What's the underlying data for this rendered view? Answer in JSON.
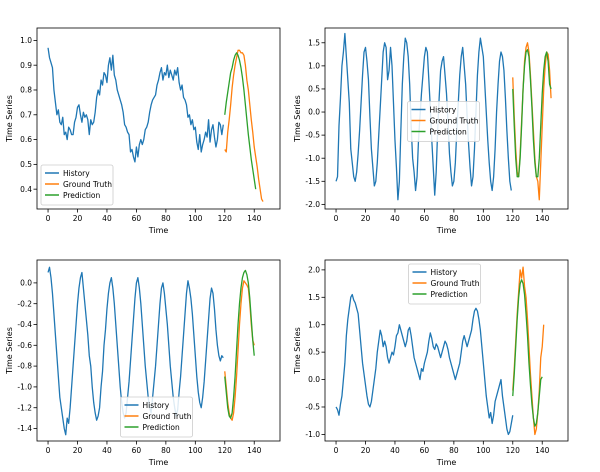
{
  "chart_data": [
    {
      "type": "line",
      "xlabel": "Time",
      "ylabel": "Time Series",
      "xlim": [
        -7.5,
        157.5
      ],
      "ylim": [
        0.32,
        1.05
      ],
      "xticks": [
        0,
        20,
        40,
        60,
        80,
        100,
        120,
        140
      ],
      "yticks": [
        0.4,
        0.5,
        0.6,
        0.7,
        0.8,
        0.9,
        1.0
      ],
      "ytick_labels": [
        "0.4",
        "0.5",
        "0.6",
        "0.7",
        "0.8",
        "0.9",
        "1.0"
      ],
      "legend_position": "lower-left",
      "legend": [
        "History",
        "Ground Truth",
        "Prediction"
      ],
      "series": [
        {
          "name": "History",
          "color": "#1f77b4",
          "x_start": 0,
          "values": [
            0.97,
            0.93,
            0.91,
            0.89,
            0.8,
            0.75,
            0.7,
            0.72,
            0.67,
            0.66,
            0.69,
            0.62,
            0.63,
            0.6,
            0.65,
            0.64,
            0.62,
            0.62,
            0.67,
            0.69,
            0.73,
            0.74,
            0.7,
            0.67,
            0.71,
            0.69,
            0.7,
            0.68,
            0.62,
            0.68,
            0.66,
            0.67,
            0.71,
            0.77,
            0.8,
            0.78,
            0.84,
            0.82,
            0.87,
            0.86,
            0.83,
            0.9,
            0.93,
            0.88,
            0.94,
            0.86,
            0.84,
            0.8,
            0.78,
            0.76,
            0.74,
            0.71,
            0.66,
            0.65,
            0.63,
            0.62,
            0.55,
            0.56,
            0.53,
            0.51,
            0.57,
            0.53,
            0.58,
            0.6,
            0.58,
            0.6,
            0.64,
            0.65,
            0.67,
            0.71,
            0.74,
            0.76,
            0.77,
            0.78,
            0.82,
            0.84,
            0.87,
            0.89,
            0.84,
            0.87,
            0.86,
            0.9,
            0.85,
            0.88,
            0.86,
            0.84,
            0.88,
            0.86,
            0.89,
            0.83,
            0.8,
            0.82,
            0.77,
            0.76,
            0.74,
            0.69,
            0.7,
            0.66,
            0.68,
            0.64,
            0.65,
            0.59,
            0.56,
            0.62,
            0.55,
            0.58,
            0.6,
            0.63,
            0.61,
            0.68,
            0.59,
            0.64,
            0.66,
            0.61,
            0.57,
            0.6,
            0.67,
            0.66,
            0.62,
            0.66
          ]
        },
        {
          "name": "Ground Truth",
          "color": "#ff7f0e",
          "x_start": 120,
          "values": [
            0.56,
            0.55,
            0.63,
            0.68,
            0.74,
            0.81,
            0.86,
            0.9,
            0.93,
            0.96,
            0.96,
            0.95,
            0.95,
            0.94,
            0.9,
            0.84,
            0.8,
            0.74,
            0.68,
            0.63,
            0.57,
            0.53,
            0.49,
            0.44,
            0.4,
            0.36,
            0.35
          ]
        },
        {
          "name": "Prediction",
          "color": "#2ca02c",
          "x_start": 120,
          "values": [
            0.7,
            0.75,
            0.79,
            0.83,
            0.87,
            0.89,
            0.92,
            0.94,
            0.95,
            0.94,
            0.92,
            0.89,
            0.85,
            0.8,
            0.74,
            0.68,
            0.62,
            0.57,
            0.52,
            0.48,
            0.44,
            0.4
          ]
        }
      ]
    },
    {
      "type": "line",
      "xlabel": "Time",
      "ylabel": "Time Series",
      "xlim": [
        -7.5,
        157.5
      ],
      "ylim": [
        -2.1,
        1.82
      ],
      "xticks": [
        0,
        20,
        40,
        60,
        80,
        100,
        120,
        140
      ],
      "yticks": [
        -2.0,
        -1.5,
        -1.0,
        -0.5,
        0.0,
        0.5,
        1.0,
        1.5
      ],
      "ytick_labels": [
        "-2.0",
        "-1.5",
        "-1.0",
        "-0.5",
        "0.0",
        "0.5",
        "1.0",
        "1.5"
      ],
      "legend_position": "center",
      "legend": [
        "History",
        "Ground Truth",
        "Prediction"
      ],
      "series": [
        {
          "name": "History",
          "color": "#1f77b4",
          "x_start": 0,
          "values": [
            -1.5,
            -1.4,
            -0.3,
            0.3,
            1.0,
            1.3,
            1.7,
            1.2,
            0.7,
            0.2,
            -0.8,
            -1.1,
            -1.4,
            -1.5,
            -1.3,
            -0.9,
            -0.4,
            0.2,
            0.8,
            1.3,
            1.4,
            1.1,
            0.7,
            -0.1,
            -0.8,
            -1.2,
            -1.6,
            -1.5,
            -1.1,
            -0.5,
            0.1,
            0.7,
            1.3,
            1.5,
            1.4,
            0.7,
            0.9,
            1.4,
            1.0,
            0.2,
            -0.6,
            -1.2,
            -1.9,
            -1.5,
            -0.4,
            0.6,
            1.2,
            1.6,
            1.5,
            1.2,
            0.6,
            -0.3,
            -1.0,
            -1.3,
            -1.7,
            -1.4,
            -0.6,
            -0.1,
            0.4,
            0.8,
            1.2,
            1.4,
            1.3,
            0.7,
            0.1,
            -0.6,
            -1.2,
            -1.8,
            -1.3,
            -0.4,
            0.3,
            0.9,
            1.1,
            1.2,
            0.8,
            0.4,
            -0.2,
            -0.9,
            -1.3,
            -1.6,
            -1.5,
            -1.1,
            -0.4,
            0.2,
            0.8,
            1.2,
            1.4,
            1.0,
            0.6,
            -0.1,
            -0.7,
            -1.2,
            -1.6,
            -1.4,
            -0.8,
            0.0,
            0.8,
            1.3,
            1.6,
            1.4,
            1.2,
            0.6,
            0.0,
            -0.6,
            -1.1,
            -1.5,
            -1.7,
            -1.4,
            -0.8,
            0.0,
            0.6,
            1.1,
            1.3,
            1.2,
            0.9,
            0.3,
            -0.4,
            -1.0,
            -1.5,
            -1.7
          ]
        },
        {
          "name": "Ground Truth",
          "color": "#ff7f0e",
          "x_start": 120,
          "values": [
            0.75,
            -0.1,
            -0.8,
            -1.3,
            -1.4,
            -0.9,
            -0.2,
            0.5,
            1.1,
            1.4,
            1.5,
            1.3,
            0.8,
            0.2,
            -0.4,
            -1.0,
            -1.4,
            -1.5,
            -1.9,
            -1.1,
            -0.3,
            0.5,
            1.0,
            1.3,
            1.25,
            0.9,
            0.3
          ]
        },
        {
          "name": "Prediction",
          "color": "#2ca02c",
          "x_start": 120,
          "values": [
            0.5,
            -0.3,
            -1.0,
            -1.4,
            -1.4,
            -1.0,
            -0.3,
            0.5,
            1.0,
            1.3,
            1.35,
            1.2,
            0.7,
            0.1,
            -0.6,
            -1.1,
            -1.4,
            -1.4,
            -1.0,
            -0.3,
            0.4,
            0.9,
            1.2,
            1.3,
            1.1,
            0.6,
            0.5
          ]
        }
      ]
    },
    {
      "type": "line",
      "xlabel": "Time",
      "ylabel": "Time Series",
      "xlim": [
        -7.5,
        157.5
      ],
      "ylim": [
        -1.52,
        0.22
      ],
      "xticks": [
        0,
        20,
        40,
        60,
        80,
        100,
        120,
        140
      ],
      "yticks": [
        -1.4,
        -1.2,
        -1.0,
        -0.8,
        -0.6,
        -0.4,
        -0.2,
        0.0
      ],
      "ytick_labels": [
        "-1.4",
        "-1.2",
        "-1.0",
        "-0.8",
        "-0.6",
        "-0.4",
        "-0.2",
        "0.0"
      ],
      "legend_position": "lower-center",
      "legend": [
        "History",
        "Ground Truth",
        "Prediction"
      ],
      "series": [
        {
          "name": "History",
          "color": "#1f77b4",
          "x_start": 0,
          "values": [
            0.1,
            0.15,
            0.05,
            -0.1,
            -0.3,
            -0.5,
            -0.7,
            -0.9,
            -1.1,
            -1.2,
            -1.3,
            -1.4,
            -1.46,
            -1.3,
            -1.35,
            -1.2,
            -1.0,
            -0.8,
            -0.6,
            -0.4,
            -0.2,
            -0.05,
            0.05,
            0.1,
            -0.05,
            -0.2,
            -0.35,
            -0.5,
            -0.7,
            -0.8,
            -1.0,
            -1.15,
            -1.25,
            -1.32,
            -1.28,
            -1.2,
            -1.0,
            -0.85,
            -0.6,
            -0.45,
            -0.25,
            -0.1,
            0.0,
            0.05,
            -0.05,
            -0.2,
            -0.4,
            -0.6,
            -0.8,
            -1.0,
            -1.15,
            -1.25,
            -1.3,
            -1.25,
            -1.1,
            -0.95,
            -0.75,
            -0.55,
            -0.35,
            -0.15,
            0.0,
            0.05,
            -0.05,
            -0.2,
            -0.4,
            -0.6,
            -0.8,
            -0.95,
            -1.1,
            -1.2,
            -1.25,
            -1.1,
            -0.95,
            -0.8,
            -0.6,
            -0.4,
            -0.2,
            -0.05,
            0.0,
            -0.1,
            -0.25,
            -0.4,
            -0.6,
            -0.8,
            -0.95,
            -1.1,
            -1.2,
            -1.28,
            -1.22,
            -1.05,
            -0.9,
            -0.7,
            -0.5,
            -0.3,
            -0.1,
            0.02,
            -0.05,
            -0.15,
            -0.3,
            -0.5,
            -0.7,
            -0.9,
            -1.05,
            -1.15,
            -1.2,
            -1.1,
            -0.95,
            -0.75,
            -0.55,
            -0.35,
            -0.15,
            -0.05,
            -0.1,
            -0.25,
            -0.45,
            -0.6,
            -0.7,
            -0.75,
            -0.7,
            -0.72
          ]
        },
        {
          "name": "Ground Truth",
          "color": "#ff7f0e",
          "x_start": 120,
          "values": [
            -0.85,
            -1.0,
            -1.15,
            -1.25,
            -1.3,
            -1.32,
            -1.25,
            -1.1,
            -0.9,
            -0.65,
            -0.4,
            -0.2,
            -0.05,
            0.02,
            0.0,
            -0.02,
            -0.05,
            -0.2,
            -0.4,
            -0.55,
            -0.6
          ]
        },
        {
          "name": "Prediction",
          "color": "#2ca02c",
          "x_start": 120,
          "values": [
            -0.9,
            -1.05,
            -1.2,
            -1.28,
            -1.3,
            -1.25,
            -1.1,
            -0.9,
            -0.65,
            -0.4,
            -0.2,
            -0.05,
            0.05,
            0.1,
            0.12,
            0.08,
            0.0,
            -0.15,
            -0.35,
            -0.55,
            -0.7
          ]
        }
      ]
    },
    {
      "type": "line",
      "xlabel": "Time",
      "ylabel": "Time Series",
      "xlim": [
        -7.5,
        157.5
      ],
      "ylim": [
        -1.12,
        2.18
      ],
      "xticks": [
        0,
        20,
        40,
        60,
        80,
        100,
        120,
        140
      ],
      "yticks": [
        -1.0,
        -0.5,
        0.0,
        0.5,
        1.0,
        1.5,
        2.0
      ],
      "ytick_labels": [
        "-1.0",
        "-0.5",
        "0.0",
        "0.5",
        "1.0",
        "1.5",
        "2.0"
      ],
      "legend_position": "top-center",
      "legend": [
        "History",
        "Ground Truth",
        "Prediction"
      ],
      "series": [
        {
          "name": "History",
          "color": "#1f77b4",
          "x_start": 0,
          "values": [
            -0.5,
            -0.55,
            -0.65,
            -0.45,
            -0.3,
            0.0,
            0.3,
            0.8,
            1.1,
            1.3,
            1.5,
            1.55,
            1.45,
            1.4,
            1.3,
            1.2,
            0.9,
            0.6,
            0.3,
            0.1,
            -0.1,
            -0.3,
            -0.45,
            -0.5,
            -0.4,
            -0.2,
            0.0,
            0.2,
            0.5,
            0.7,
            0.9,
            0.8,
            0.6,
            0.7,
            0.6,
            0.4,
            0.3,
            0.4,
            0.5,
            0.45,
            0.6,
            0.8,
            0.85,
            1.0,
            0.9,
            0.8,
            0.7,
            0.6,
            0.7,
            0.9,
            0.95,
            0.8,
            0.6,
            0.4,
            0.3,
            0.2,
            0.1,
            0.0,
            0.2,
            0.15,
            0.3,
            0.4,
            0.5,
            0.7,
            0.85,
            0.75,
            0.6,
            0.55,
            0.65,
            0.6,
            0.5,
            0.4,
            0.5,
            0.6,
            0.7,
            0.65,
            0.55,
            0.4,
            0.3,
            0.2,
            0.1,
            0.0,
            0.1,
            0.2,
            0.3,
            0.5,
            0.7,
            0.8,
            0.7,
            0.6,
            0.7,
            0.8,
            0.9,
            1.1,
            1.25,
            1.3,
            1.25,
            1.1,
            0.9,
            0.6,
            0.3,
            0.0,
            -0.3,
            -0.5,
            -0.7,
            -0.6,
            -0.8,
            -0.65,
            -0.4,
            -0.3,
            -0.2,
            -0.1,
            0.0,
            -0.3,
            -0.5,
            -0.7,
            -0.9,
            -1.0,
            -0.95,
            -0.8,
            -0.65
          ]
        },
        {
          "name": "Ground Truth",
          "color": "#ff7f0e",
          "x_start": 120,
          "values": [
            -0.2,
            0.2,
            0.7,
            1.2,
            1.6,
            2.0,
            1.85,
            2.05,
            1.7,
            1.5,
            1.1,
            0.6,
            0.1,
            -0.3,
            -0.7,
            -1.0,
            -0.9,
            -0.6,
            -0.2,
            0.4,
            0.6,
            1.0
          ]
        },
        {
          "name": "Prediction",
          "color": "#2ca02c",
          "x_start": 120,
          "values": [
            -0.3,
            0.1,
            0.6,
            1.1,
            1.5,
            1.75,
            1.82,
            1.75,
            1.55,
            1.2,
            0.8,
            0.3,
            -0.1,
            -0.45,
            -0.7,
            -0.85,
            -0.8,
            -0.6,
            -0.3,
            0.0,
            0.05
          ]
        }
      ]
    }
  ]
}
